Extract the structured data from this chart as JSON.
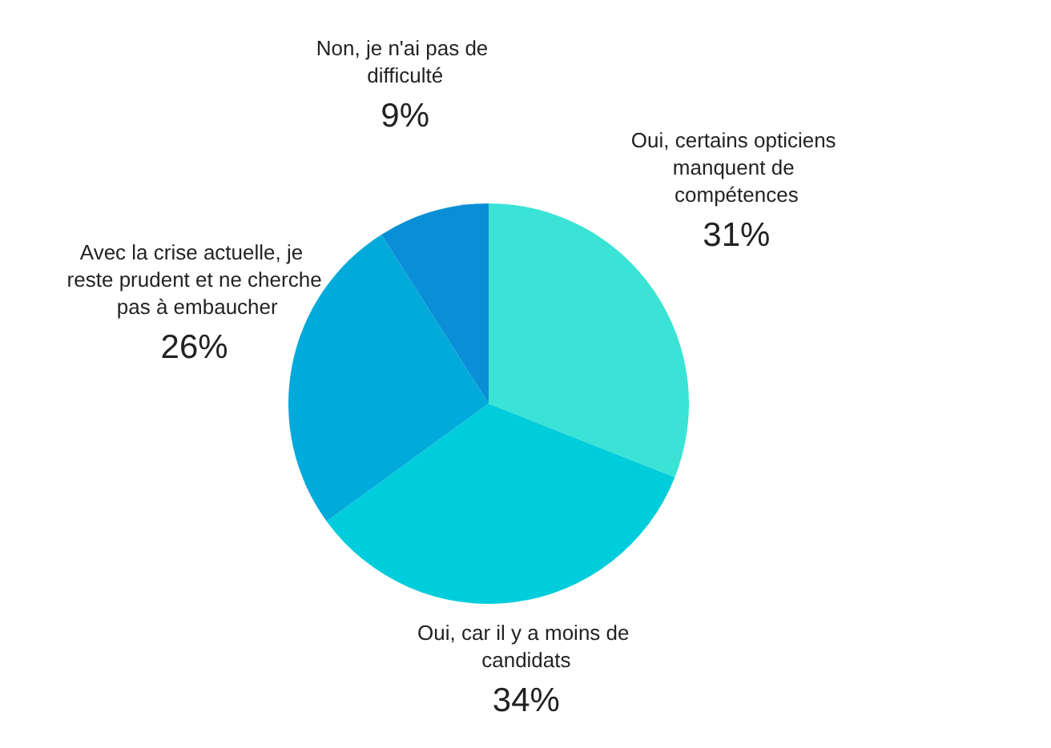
{
  "chart_data": {
    "type": "pie",
    "categories": [
      "Oui, certains opticiens manquent de compétences",
      "Oui, car il y a moins de candidats",
      "Avec la crise actuelle, je reste prudent et ne cherche pas à embaucher",
      "Non, je n'ai pas de difficulté"
    ],
    "values": [
      31,
      34,
      26,
      9
    ],
    "value_labels": [
      "31%",
      "34%",
      "26%",
      "9%"
    ],
    "colors": [
      "#3ae3d5",
      "#00cddc",
      "#00aadb",
      "#0a8fd6"
    ],
    "legend": false
  }
}
